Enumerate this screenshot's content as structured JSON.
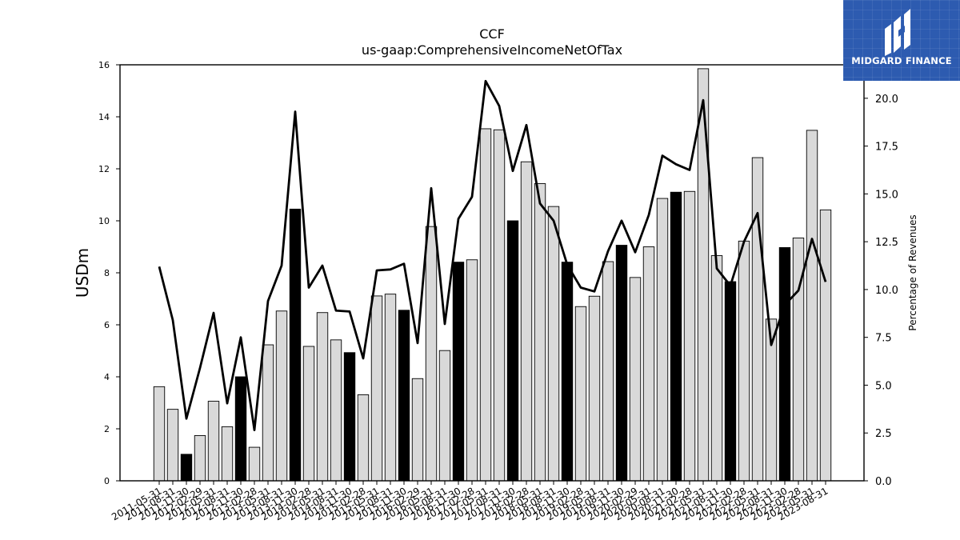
{
  "brand": {
    "name": "MIDGARD FINANCE",
    "logo_icon": "midgard-logo-icon",
    "background": "#2d5bb0"
  },
  "chart_data": {
    "type": "bar",
    "title": "CCF",
    "subtitle": "us-gaap:ComprehensiveIncomeNetOfTax",
    "ylabel": "USDm",
    "y2label": "Percentage of Revenues",
    "ylim": [
      0,
      16
    ],
    "y2lim": [
      0,
      21.75
    ],
    "yticks": [
      "0",
      "2",
      "4",
      "6",
      "8",
      "10",
      "12",
      "14",
      "16"
    ],
    "y2ticks": [
      "0.0",
      "2.5",
      "5.0",
      "7.5",
      "10.0",
      "12.5",
      "15.0",
      "17.5",
      "20.0"
    ],
    "categories": [
      "2011-05-31",
      "2011-08-31",
      "2011-11-30",
      "2012-02-29",
      "2012-05-31",
      "2012-08-31",
      "2012-11-30",
      "2013-02-28",
      "2013-05-31",
      "2013-08-31",
      "2013-11-30",
      "2014-02-28",
      "2014-05-31",
      "2014-08-31",
      "2014-11-30",
      "2015-02-28",
      "2015-05-31",
      "2015-08-31",
      "2015-11-30",
      "2016-02-29",
      "2016-05-31",
      "2016-08-31",
      "2016-11-30",
      "2017-02-28",
      "2017-05-31",
      "2017-08-31",
      "2017-11-30",
      "2018-02-28",
      "2018-05-31",
      "2018-08-31",
      "2018-11-30",
      "2019-02-28",
      "2019-05-31",
      "2019-08-31",
      "2019-11-30",
      "2020-02-29",
      "2020-05-31",
      "2020-08-31",
      "2020-11-30",
      "2021-02-28",
      "2021-05-31",
      "2021-08-31",
      "2021-11-30",
      "2022-02-28",
      "2022-05-31",
      "2022-08-31",
      "2022-11-30",
      "2023-02-28",
      "2023-05-31",
      "2023-08-31"
    ],
    "series": [
      {
        "kind": "bar",
        "values": [
          3.62,
          2.75,
          1.02,
          1.74,
          3.06,
          2.08,
          4.0,
          1.29,
          5.23,
          6.53,
          10.45,
          5.17,
          6.47,
          5.42,
          4.93,
          3.31,
          7.11,
          7.18,
          6.56,
          3.93,
          9.78,
          5.01,
          8.41,
          8.5,
          13.54,
          13.5,
          10.0,
          12.27,
          11.43,
          10.55,
          8.41,
          6.7,
          7.1,
          8.43,
          9.06,
          7.82,
          9.0,
          10.86,
          11.1,
          11.13,
          15.85,
          8.66,
          7.66,
          9.22,
          12.43,
          6.22,
          8.97,
          9.34,
          13.48,
          10.42
        ],
        "highlighted": [
          false,
          false,
          true,
          false,
          false,
          false,
          true,
          false,
          false,
          false,
          true,
          false,
          false,
          false,
          true,
          false,
          false,
          false,
          true,
          false,
          false,
          false,
          true,
          false,
          false,
          false,
          true,
          false,
          false,
          false,
          true,
          false,
          false,
          false,
          true,
          false,
          false,
          false,
          true,
          false,
          false,
          false,
          true,
          false,
          false,
          false,
          true,
          false,
          false,
          false
        ],
        "color": "#d9d9d9",
        "highlight_color": "#000000"
      },
      {
        "kind": "line",
        "axis": "right",
        "values": [
          11.2,
          8.4,
          3.25,
          5.9,
          8.78,
          4.05,
          7.5,
          2.65,
          9.4,
          11.25,
          19.3,
          10.1,
          11.25,
          8.9,
          8.85,
          6.4,
          11.0,
          11.05,
          11.35,
          7.2,
          15.3,
          8.2,
          13.7,
          14.85,
          20.9,
          19.6,
          16.2,
          18.6,
          14.5,
          13.6,
          11.3,
          10.1,
          9.9,
          12.0,
          13.6,
          11.95,
          13.9,
          17.0,
          16.55,
          16.25,
          19.9,
          11.1,
          10.2,
          12.5,
          14.0,
          7.1,
          9.2,
          9.95,
          12.65,
          10.4
        ],
        "color": "#000000"
      }
    ],
    "grid": false
  }
}
